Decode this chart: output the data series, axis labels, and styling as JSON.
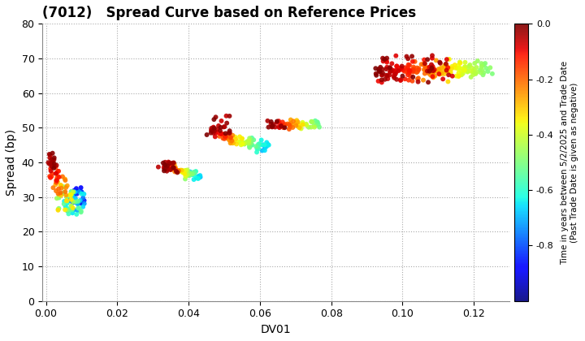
{
  "title": "(7012)   Spread Curve based on Reference Prices",
  "xlabel": "DV01",
  "ylabel": "Spread (bp)",
  "xlim": [
    -0.001,
    0.13
  ],
  "ylim": [
    0,
    80
  ],
  "xticks": [
    0.0,
    0.02,
    0.04,
    0.06,
    0.08,
    0.1,
    0.12
  ],
  "yticks": [
    0,
    10,
    20,
    30,
    40,
    50,
    60,
    70,
    80
  ],
  "colorbar_label": "Time in years between 5/2/2025 and Trade Date\n(Past Trade Date is given as negative)",
  "colorbar_vmin": -1.0,
  "colorbar_vmax": 0.0,
  "colorbar_ticks": [
    0.0,
    -0.2,
    -0.4,
    -0.6,
    -0.8
  ],
  "background_color": "#ffffff",
  "grid_color": "#aaaaaa",
  "grid_linestyle": ":",
  "point_size": 18,
  "figsize": [
    7.2,
    4.2
  ],
  "dpi": 100
}
